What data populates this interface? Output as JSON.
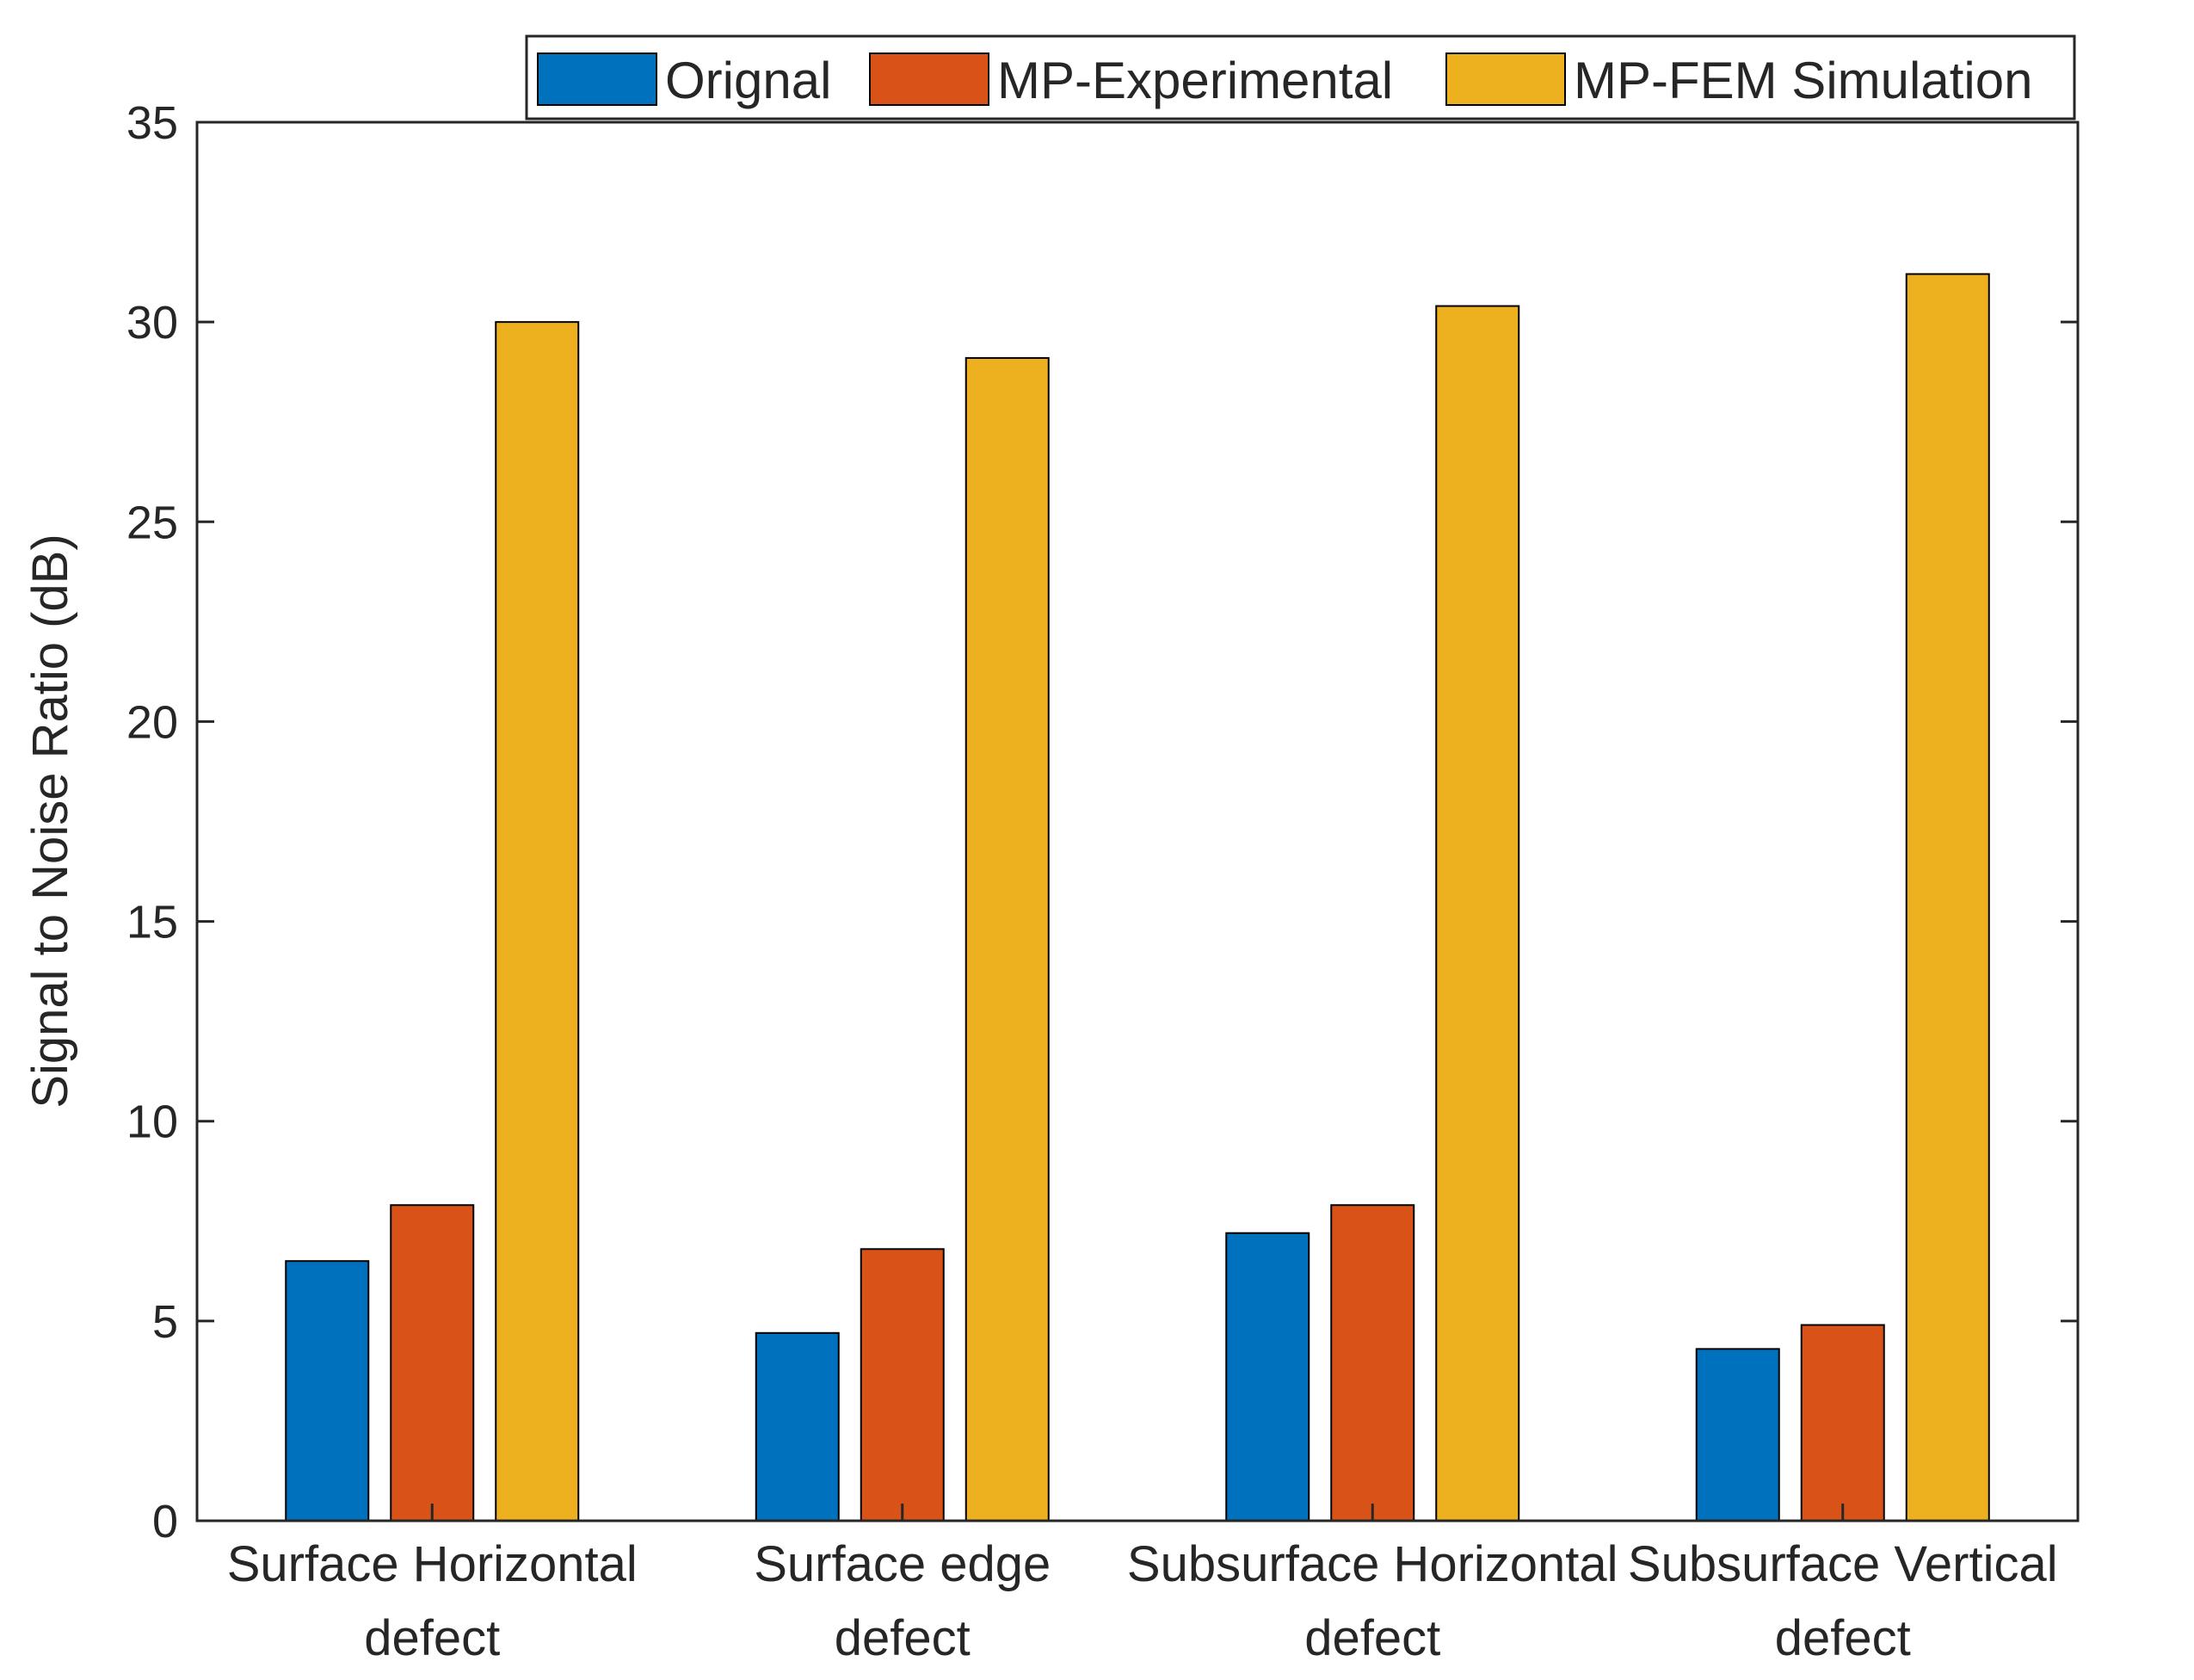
{
  "chart_data": {
    "type": "bar",
    "title": "",
    "xlabel": "",
    "ylabel": "Signal to Noise Ratio (dB)",
    "ylim": [
      0,
      35
    ],
    "yticks": [
      0,
      5,
      10,
      15,
      20,
      25,
      30,
      35
    ],
    "grid": false,
    "legend_position": "top-right",
    "categories": [
      [
        "Surface Horizontal",
        "defect"
      ],
      [
        "Surface edge",
        "defect"
      ],
      [
        "Subsurface Horizontal",
        "defect"
      ],
      [
        "Subsurface Vertical",
        "defect"
      ]
    ],
    "series": [
      {
        "name": "Orignal",
        "color": "#0072BD",
        "values": [
          6.5,
          4.7,
          7.2,
          4.3
        ]
      },
      {
        "name": "MP-Experimental",
        "color": "#D95319",
        "values": [
          7.9,
          6.8,
          7.9,
          4.9
        ]
      },
      {
        "name": "MP-FEM Simulation",
        "color": "#EDB120",
        "values": [
          30.0,
          29.1,
          30.4,
          31.2
        ]
      }
    ]
  }
}
